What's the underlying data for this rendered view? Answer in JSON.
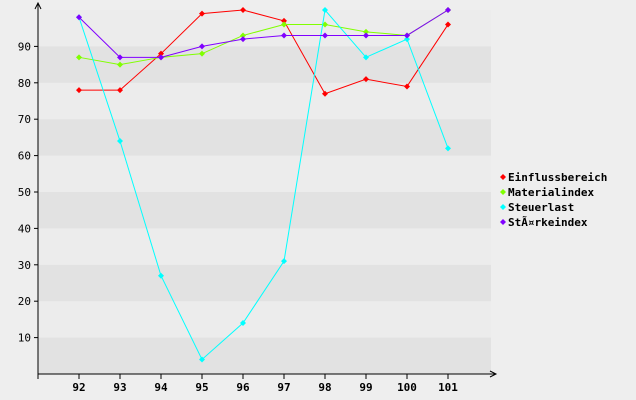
{
  "chart_data": {
    "type": "line",
    "title": "",
    "xlabel": "",
    "ylabel": "",
    "categories": [
      "92",
      "93",
      "94",
      "95",
      "96",
      "97",
      "98",
      "99",
      "100",
      "101"
    ],
    "ylim": [
      0,
      100
    ],
    "yticks": [
      10,
      20,
      30,
      40,
      50,
      60,
      70,
      80,
      90
    ],
    "grid": "horizontal bands",
    "legend_position": "right",
    "series": [
      {
        "name": "Einflussbereich",
        "color": "#ff0000",
        "values": [
          78,
          78,
          88,
          99,
          100,
          97,
          77,
          81,
          79,
          96
        ]
      },
      {
        "name": "Materialindex",
        "color": "#80ff00",
        "values": [
          87,
          85,
          87,
          88,
          93,
          96,
          96,
          94,
          93,
          100
        ]
      },
      {
        "name": "Steuerlast",
        "color": "#00ffff",
        "values": [
          98,
          64,
          27,
          4,
          14,
          31,
          100,
          87,
          92,
          62
        ]
      },
      {
        "name": "StÃ¤rkeindex",
        "color": "#8000ff",
        "values": [
          98,
          87,
          87,
          90,
          92,
          93,
          93,
          93,
          93,
          100
        ]
      }
    ]
  }
}
